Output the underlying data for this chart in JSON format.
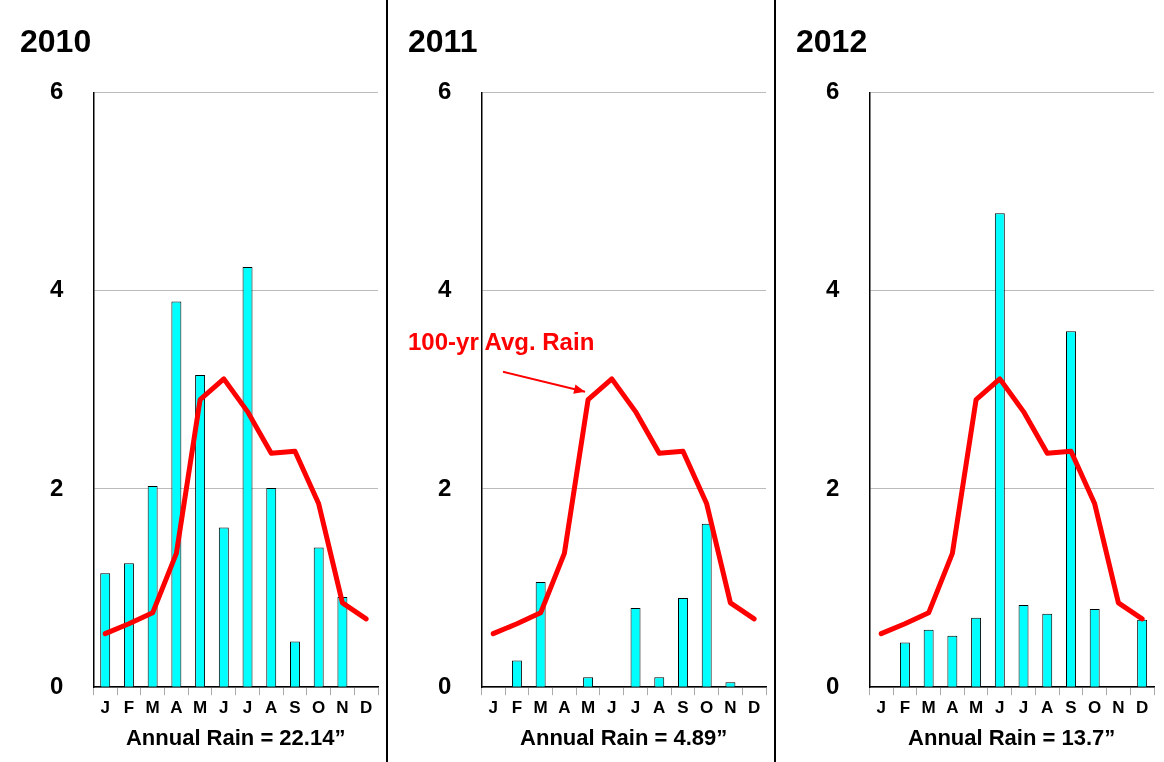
{
  "chart_data": [
    {
      "type": "bar",
      "title": "2010",
      "xlabel": "Annual Rain = 22.14”",
      "categories": [
        "J",
        "F",
        "M",
        "A",
        "M",
        "J",
        "J",
        "A",
        "S",
        "O",
        "N",
        "D"
      ],
      "ylim": [
        0,
        6
      ],
      "yticks": [
        0,
        2,
        4,
        6
      ],
      "grid": "y",
      "legend": false,
      "series": [
        {
          "color": "#00ffff",
          "values": [
            1.15,
            1.25,
            2.03,
            3.89,
            3.15,
            1.61,
            4.24,
            2.01,
            0.46,
            1.41,
            0.91,
            0
          ]
        },
        {
          "type": "line",
          "color": "#ff0000",
          "values": [
            0.54,
            0.64,
            0.75,
            1.35,
            2.9,
            3.11,
            2.78,
            2.36,
            2.38,
            1.85,
            0.85,
            0.69
          ]
        }
      ]
    },
    {
      "type": "bar",
      "title": "2011",
      "xlabel": "Annual Rain = 4.89”",
      "categories": [
        "J",
        "F",
        "M",
        "A",
        "M",
        "J",
        "J",
        "A",
        "S",
        "O",
        "N",
        "D"
      ],
      "ylim": [
        0,
        6
      ],
      "yticks": [
        0,
        2,
        4,
        6
      ],
      "grid": "y",
      "legend": false,
      "annotations": [
        "100-yr Avg. Rain"
      ],
      "series": [
        {
          "color": "#00ffff",
          "values": [
            0,
            0.27,
            1.06,
            0,
            0.1,
            0,
            0.8,
            0.1,
            0.9,
            1.65,
            0.05,
            0
          ]
        },
        {
          "type": "line",
          "color": "#ff0000",
          "values": [
            0.54,
            0.64,
            0.75,
            1.35,
            2.9,
            3.11,
            2.78,
            2.36,
            2.38,
            1.85,
            0.85,
            0.69
          ]
        }
      ]
    },
    {
      "type": "bar",
      "title": "2012",
      "xlabel": "Annual Rain = 13.7”",
      "categories": [
        "J",
        "F",
        "M",
        "A",
        "M",
        "J",
        "J",
        "A",
        "S",
        "O",
        "N",
        "D"
      ],
      "ylim": [
        0,
        6
      ],
      "yticks": [
        0,
        2,
        4,
        6
      ],
      "grid": "y",
      "legend": false,
      "series": [
        {
          "color": "#00ffff",
          "values": [
            0,
            0.45,
            0.58,
            0.52,
            0.7,
            4.78,
            0.83,
            0.74,
            3.59,
            0.79,
            0,
            0.68
          ]
        },
        {
          "type": "line",
          "color": "#ff0000",
          "values": [
            0.54,
            0.64,
            0.75,
            1.35,
            2.9,
            3.11,
            2.78,
            2.36,
            2.38,
            1.85,
            0.85,
            0.69
          ]
        }
      ]
    }
  ]
}
